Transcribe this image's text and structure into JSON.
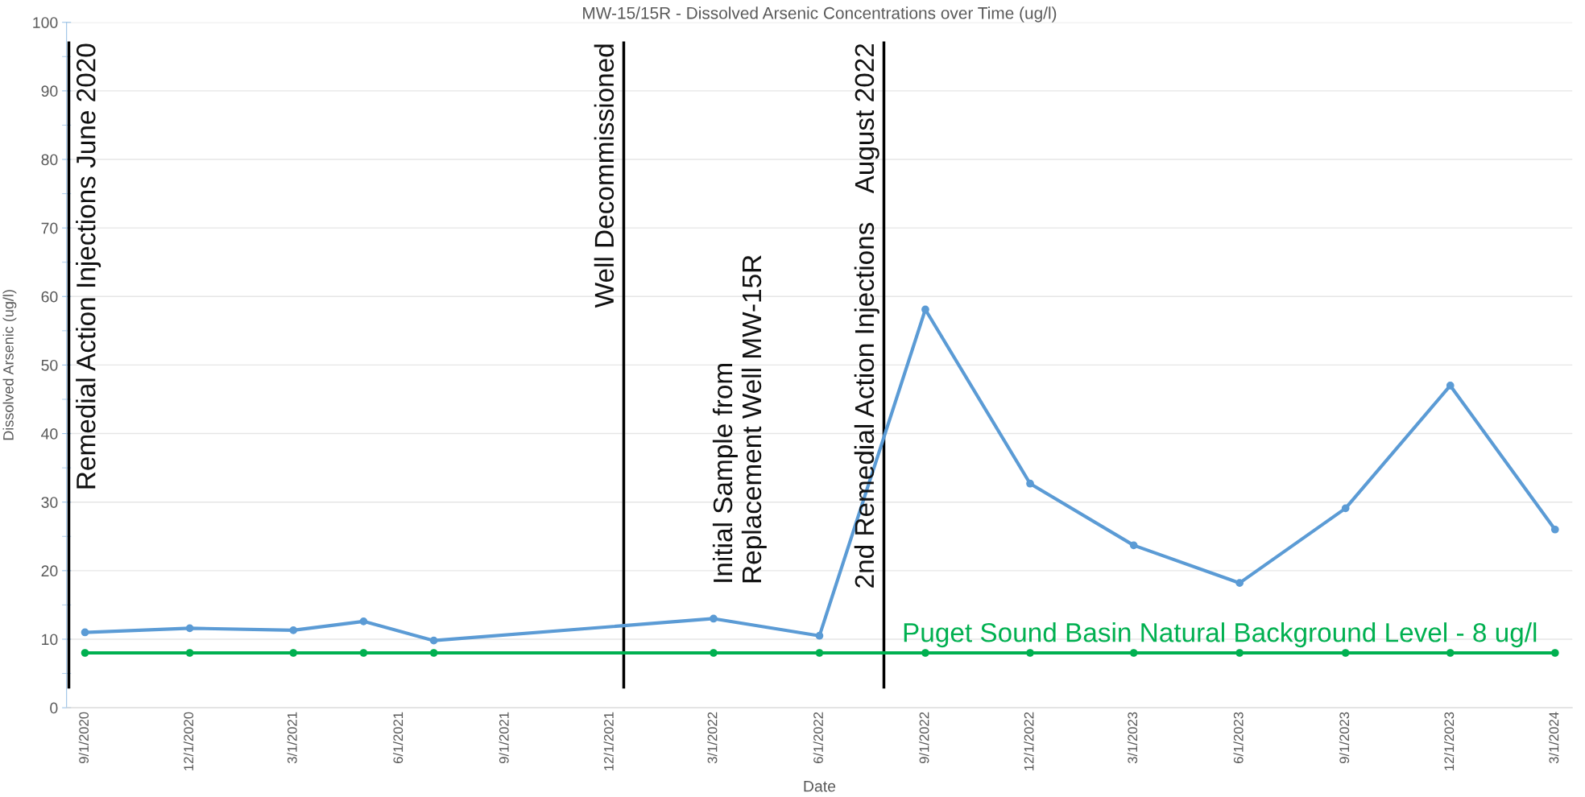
{
  "chart_data": {
    "type": "line",
    "title": "MW-15/15R - Dissolved Arsenic Concentrations over Time (ug/l)",
    "xlabel": "Date",
    "ylabel": "Dissolved Arsenic (ug/l)",
    "series": [
      {
        "color": "#5b9bd5",
        "x": [
          "2020-09-01",
          "2020-12-01",
          "2021-03-01",
          "2021-05-01",
          "2021-07-01",
          "2022-03-01",
          "2022-06-01",
          "2022-09-01",
          "2022-12-01",
          "2023-03-01",
          "2023-06-01",
          "2023-09-01",
          "2023-12-01",
          "2024-03-01"
        ],
        "values": [
          11,
          11.6,
          11.3,
          12.6,
          9.8,
          13,
          10.5,
          58.1,
          32.7,
          23.7,
          18.2,
          29.1,
          47,
          26
        ]
      },
      {
        "name": "Puget Sound Basin Natural Background Level - 8 ug/l",
        "color": "#00b050",
        "x": [
          "2020-09-01",
          "2020-12-01",
          "2021-03-01",
          "2021-05-01",
          "2021-07-01",
          "2022-03-01",
          "2022-06-01",
          "2022-09-01",
          "2022-12-01",
          "2023-03-01",
          "2023-06-01",
          "2023-09-01",
          "2023-12-01",
          "2024-03-01"
        ],
        "values": [
          8,
          8,
          8,
          8,
          8,
          8,
          8,
          8,
          8,
          8,
          8,
          8,
          8,
          8
        ]
      }
    ],
    "marker": "circle",
    "line_style": "solid",
    "grid": "y",
    "legend": false,
    "xlim": [
      "2020-08-16",
      "2024-03-16"
    ],
    "xticks": [
      {
        "value": "2020-09-01",
        "label": "9/1/2020"
      },
      {
        "value": "2020-12-01",
        "label": "12/1/2020"
      },
      {
        "value": "2021-03-01",
        "label": "3/1/2021"
      },
      {
        "value": "2021-06-01",
        "label": "6/1/2021"
      },
      {
        "value": "2021-09-01",
        "label": "9/1/2021"
      },
      {
        "value": "2021-12-01",
        "label": "12/1/2021"
      },
      {
        "value": "2022-03-01",
        "label": "3/1/2022"
      },
      {
        "value": "2022-06-01",
        "label": "6/1/2022"
      },
      {
        "value": "2022-09-01",
        "label": "9/1/2022"
      },
      {
        "value": "2022-12-01",
        "label": "12/1/2022"
      },
      {
        "value": "2023-03-01",
        "label": "3/1/2023"
      },
      {
        "value": "2023-06-01",
        "label": "6/1/2023"
      },
      {
        "value": "2023-09-01",
        "label": "9/1/2023"
      },
      {
        "value": "2023-12-01",
        "label": "12/1/2023"
      },
      {
        "value": "2024-03-01",
        "label": "3/1/2024"
      }
    ],
    "ylim": [
      0,
      100
    ],
    "yticks": [
      0,
      {
        "value": 5,
        "label": null
      },
      10,
      {
        "value": 15,
        "label": null
      },
      20,
      {
        "value": 25,
        "label": null
      },
      30,
      {
        "value": 35,
        "label": null
      },
      40,
      {
        "value": 45,
        "label": null
      },
      50,
      {
        "value": 55,
        "label": null
      },
      60,
      {
        "value": 65,
        "label": null
      },
      70,
      {
        "value": 75,
        "label": null
      },
      80,
      {
        "value": 85,
        "label": null
      },
      90,
      {
        "value": 95,
        "label": null
      },
      100
    ],
    "ref_lines": [
      {
        "axis": "x",
        "value": "2020-08-18",
        "label": "Remedial Action Injections June 2020",
        "color": "#000000"
      },
      {
        "axis": "x",
        "value": "2021-12-13",
        "label": "Well Decommissioned",
        "color": "#000000"
      },
      {
        "axis": "x",
        "value": "2022-07-27",
        "label": "2nd Remedial Action Injections    August 2022",
        "color": "#000000"
      }
    ],
    "annotations": [
      "Initial Sample from\nReplacement Well MW-15R"
    ]
  }
}
